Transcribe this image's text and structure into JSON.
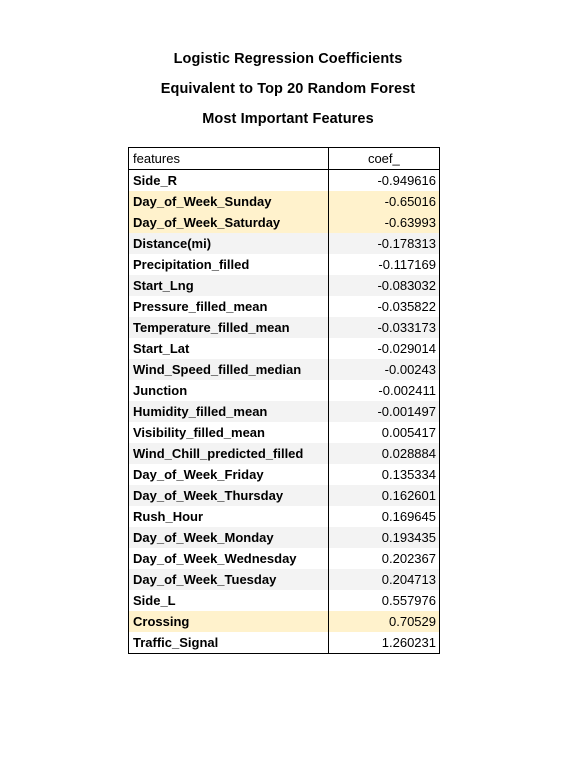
{
  "title_lines": [
    "Logistic Regression Coefficients",
    "Equivalent to Top 20 Random Forest",
    "Most Important Features"
  ],
  "table": {
    "headers": [
      "features",
      "coef_"
    ],
    "row_colors": {
      "white": "#ffffff",
      "gray": "#f3f3f3",
      "highlight": "#fff2cc"
    },
    "rows": [
      {
        "feature": "Side_R",
        "coef": "-0.949616",
        "fill": "white"
      },
      {
        "feature": "Day_of_Week_Sunday",
        "coef": "-0.65016",
        "fill": "highlight"
      },
      {
        "feature": "Day_of_Week_Saturday",
        "coef": "-0.63993",
        "fill": "highlight"
      },
      {
        "feature": "Distance(mi)",
        "coef": "-0.178313",
        "fill": "gray"
      },
      {
        "feature": "Precipitation_filled",
        "coef": "-0.117169",
        "fill": "white"
      },
      {
        "feature": "Start_Lng",
        "coef": "-0.083032",
        "fill": "gray"
      },
      {
        "feature": "Pressure_filled_mean",
        "coef": "-0.035822",
        "fill": "white"
      },
      {
        "feature": "Temperature_filled_mean",
        "coef": "-0.033173",
        "fill": "gray"
      },
      {
        "feature": "Start_Lat",
        "coef": "-0.029014",
        "fill": "white"
      },
      {
        "feature": "Wind_Speed_filled_median",
        "coef": "-0.00243",
        "fill": "gray"
      },
      {
        "feature": "Junction",
        "coef": "-0.002411",
        "fill": "white"
      },
      {
        "feature": "Humidity_filled_mean",
        "coef": "-0.001497",
        "fill": "gray"
      },
      {
        "feature": "Visibility_filled_mean",
        "coef": "0.005417",
        "fill": "white"
      },
      {
        "feature": "Wind_Chill_predicted_filled",
        "coef": "0.028884",
        "fill": "gray"
      },
      {
        "feature": "Day_of_Week_Friday",
        "coef": "0.135334",
        "fill": "white"
      },
      {
        "feature": "Day_of_Week_Thursday",
        "coef": "0.162601",
        "fill": "gray"
      },
      {
        "feature": "Rush_Hour",
        "coef": "0.169645",
        "fill": "white"
      },
      {
        "feature": "Day_of_Week_Monday",
        "coef": "0.193435",
        "fill": "gray"
      },
      {
        "feature": "Day_of_Week_Wednesday",
        "coef": "0.202367",
        "fill": "white"
      },
      {
        "feature": "Day_of_Week_Tuesday",
        "coef": "0.204713",
        "fill": "gray"
      },
      {
        "feature": "Side_L",
        "coef": "0.557976",
        "fill": "white"
      },
      {
        "feature": "Crossing",
        "coef": "0.70529",
        "fill": "highlight"
      },
      {
        "feature": "Traffic_Signal",
        "coef": "1.260231",
        "fill": "white"
      }
    ]
  }
}
